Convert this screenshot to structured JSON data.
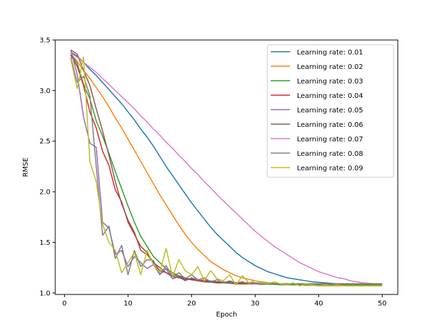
{
  "chart_data": {
    "type": "line",
    "xlabel": "Epoch",
    "ylabel": "RMSE",
    "xlim": [
      -1.45,
      52.45
    ],
    "ylim": [
      0.985,
      3.5
    ],
    "xticks": [
      0,
      10,
      20,
      30,
      40,
      50
    ],
    "yticks": [
      1.0,
      1.5,
      2.0,
      2.5,
      3.0,
      3.5
    ],
    "ytick_labels": [
      "1.0",
      "1.5",
      "2.0",
      "2.5",
      "3.0",
      "3.5"
    ],
    "grid": false,
    "legend_position": "top-right",
    "x": [
      1,
      2,
      3,
      4,
      5,
      6,
      7,
      8,
      9,
      10,
      11,
      12,
      13,
      14,
      15,
      16,
      17,
      18,
      19,
      20,
      21,
      22,
      23,
      24,
      25,
      26,
      27,
      28,
      29,
      30,
      31,
      32,
      33,
      34,
      35,
      36,
      37,
      38,
      39,
      40,
      41,
      42,
      43,
      44,
      45,
      46,
      47,
      48,
      49,
      50
    ],
    "series": [
      {
        "name": "Learning rate: 0.01",
        "color": "#1f77b4",
        "values": [
          3.38,
          3.34,
          3.28,
          3.21,
          3.15,
          3.08,
          3.01,
          2.94,
          2.87,
          2.79,
          2.71,
          2.62,
          2.54,
          2.45,
          2.35,
          2.25,
          2.16,
          2.07,
          1.98,
          1.89,
          1.81,
          1.73,
          1.65,
          1.58,
          1.52,
          1.46,
          1.4,
          1.35,
          1.31,
          1.27,
          1.24,
          1.21,
          1.19,
          1.17,
          1.15,
          1.14,
          1.13,
          1.12,
          1.11,
          1.105,
          1.1,
          1.095,
          1.09,
          1.09,
          1.085,
          1.085,
          1.08,
          1.08,
          1.08,
          1.08
        ]
      },
      {
        "name": "Learning rate: 0.02",
        "color": "#ff7f0e",
        "values": [
          3.36,
          3.29,
          3.2,
          3.12,
          3.03,
          2.94,
          2.84,
          2.73,
          2.63,
          2.52,
          2.41,
          2.3,
          2.19,
          2.08,
          1.97,
          1.87,
          1.77,
          1.67,
          1.58,
          1.5,
          1.43,
          1.37,
          1.31,
          1.27,
          1.23,
          1.2,
          1.17,
          1.15,
          1.135,
          1.12,
          1.11,
          1.1,
          1.095,
          1.09,
          1.085,
          1.08,
          1.08,
          1.075,
          1.075,
          1.07,
          1.07,
          1.07,
          1.07,
          1.07,
          1.07,
          1.07,
          1.07,
          1.07,
          1.07,
          1.07
        ]
      },
      {
        "name": "Learning rate: 0.03",
        "color": "#2ca02c",
        "values": [
          3.36,
          3.27,
          3.06,
          2.92,
          2.7,
          2.55,
          2.38,
          2.2,
          2.03,
          1.86,
          1.7,
          1.56,
          1.46,
          1.36,
          1.3,
          1.24,
          1.2,
          1.17,
          1.15,
          1.13,
          1.12,
          1.11,
          1.105,
          1.1,
          1.1,
          1.095,
          1.09,
          1.09,
          1.09,
          1.09,
          1.085,
          1.085,
          1.085,
          1.08,
          1.08,
          1.08,
          1.08,
          1.08,
          1.08,
          1.08,
          1.08,
          1.08,
          1.08,
          1.08,
          1.08,
          1.08,
          1.08,
          1.08,
          1.08,
          1.08
        ]
      },
      {
        "name": "Learning rate: 0.04",
        "color": "#d62728",
        "values": [
          3.35,
          3.24,
          3.05,
          2.79,
          2.63,
          2.4,
          2.26,
          2.02,
          1.9,
          1.7,
          1.58,
          1.46,
          1.4,
          1.3,
          1.25,
          1.2,
          1.18,
          1.16,
          1.14,
          1.13,
          1.12,
          1.11,
          1.11,
          1.1,
          1.1,
          1.1,
          1.09,
          1.09,
          1.09,
          1.09,
          1.09,
          1.09,
          1.09,
          1.09,
          1.09,
          1.09,
          1.09,
          1.09,
          1.09,
          1.09,
          1.09,
          1.09,
          1.09,
          1.09,
          1.09,
          1.09,
          1.09,
          1.09,
          1.09,
          1.09
        ]
      },
      {
        "name": "Learning rate: 0.05",
        "color": "#9467bd",
        "values": [
          3.4,
          3.16,
          2.74,
          2.48,
          2.44,
          1.7,
          1.64,
          1.38,
          1.42,
          1.26,
          1.36,
          1.3,
          1.24,
          1.28,
          1.18,
          1.24,
          1.14,
          1.16,
          1.12,
          1.15,
          1.13,
          1.12,
          1.12,
          1.11,
          1.11,
          1.1,
          1.1,
          1.1,
          1.1,
          1.09,
          1.09,
          1.09,
          1.09,
          1.09,
          1.09,
          1.09,
          1.09,
          1.09,
          1.09,
          1.09,
          1.09,
          1.09,
          1.09,
          1.09,
          1.09,
          1.09,
          1.09,
          1.09,
          1.09,
          1.09
        ]
      },
      {
        "name": "Learning rate: 0.06",
        "color": "#8c564b",
        "values": [
          3.4,
          3.36,
          3.2,
          3.05,
          2.82,
          2.6,
          2.36,
          2.1,
          1.88,
          1.72,
          1.6,
          1.42,
          1.38,
          1.3,
          1.22,
          1.2,
          1.16,
          1.15,
          1.13,
          1.14,
          1.12,
          1.13,
          1.11,
          1.11,
          1.1,
          1.11,
          1.1,
          1.1,
          1.1,
          1.1,
          1.09,
          1.1,
          1.09,
          1.09,
          1.09,
          1.09,
          1.09,
          1.09,
          1.09,
          1.09,
          1.09,
          1.09,
          1.09,
          1.09,
          1.09,
          1.09,
          1.09,
          1.09,
          1.09,
          1.09
        ]
      },
      {
        "name": "Learning rate: 0.07",
        "color": "#e377c2",
        "values": [
          3.37,
          3.33,
          3.28,
          3.23,
          3.18,
          3.12,
          3.06,
          3.0,
          2.94,
          2.88,
          2.82,
          2.75,
          2.69,
          2.62,
          2.56,
          2.49,
          2.43,
          2.36,
          2.3,
          2.23,
          2.17,
          2.1,
          2.04,
          1.97,
          1.91,
          1.85,
          1.79,
          1.73,
          1.67,
          1.61,
          1.56,
          1.51,
          1.46,
          1.42,
          1.38,
          1.34,
          1.3,
          1.27,
          1.24,
          1.21,
          1.19,
          1.17,
          1.15,
          1.14,
          1.12,
          1.11,
          1.1,
          1.095,
          1.09,
          1.09
        ]
      },
      {
        "name": "Learning rate: 0.08",
        "color": "#7f7f7f",
        "values": [
          3.33,
          3.08,
          3.14,
          2.95,
          2.25,
          1.57,
          1.66,
          1.34,
          1.47,
          1.18,
          1.42,
          1.26,
          1.33,
          1.32,
          1.18,
          1.27,
          1.16,
          1.2,
          1.14,
          1.18,
          1.13,
          1.15,
          1.11,
          1.13,
          1.1,
          1.12,
          1.1,
          1.11,
          1.09,
          1.1,
          1.09,
          1.1,
          1.09,
          1.09,
          1.09,
          1.09,
          1.09,
          1.09,
          1.09,
          1.09,
          1.09,
          1.09,
          1.09,
          1.09,
          1.09,
          1.09,
          1.09,
          1.09,
          1.09,
          1.09
        ]
      },
      {
        "name": "Learning rate: 0.09",
        "color": "#bcbd22",
        "values": [
          3.31,
          3.02,
          3.33,
          2.3,
          2.1,
          1.68,
          1.5,
          1.42,
          1.2,
          1.3,
          1.4,
          1.18,
          1.42,
          1.28,
          1.2,
          1.44,
          1.16,
          1.33,
          1.22,
          1.18,
          1.26,
          1.12,
          1.22,
          1.14,
          1.12,
          1.18,
          1.08,
          1.17,
          1.1,
          1.12,
          1.1,
          1.09,
          1.11,
          1.09,
          1.08,
          1.1,
          1.07,
          1.09,
          1.08,
          1.07,
          1.08,
          1.07,
          1.08,
          1.07,
          1.07,
          1.07,
          1.07,
          1.07,
          1.07,
          1.07
        ]
      }
    ]
  }
}
